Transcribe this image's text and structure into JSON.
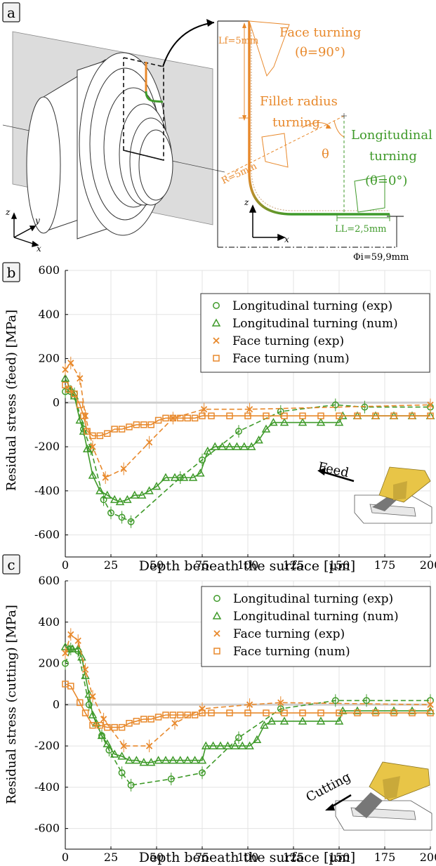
{
  "panel_a": {
    "label": "a",
    "face_turning": "Face turning",
    "face_angle": "(θ=90°)",
    "lf": "Lf=5mm",
    "fillet": [
      "Fillet radius",
      "turning"
    ],
    "theta": "θ",
    "longitudinal": [
      "Longitudinal",
      "turning"
    ],
    "long_angle": "(θ=0°)",
    "radius": "R=5mm",
    "ll": "LL=2,5mm",
    "phi": "Φi=59,9mm",
    "axis_z": "z",
    "axis_x": "x",
    "axis_y": "y",
    "colors": {
      "face": "#e8892c",
      "long": "#3f9a2a",
      "gray": "#d9d9d9"
    }
  },
  "chart_data": [
    {
      "label": "b",
      "type": "line",
      "xlabel": "Depth beneath the surface [µm]",
      "ylabel": "Residual stress (feed) [MPa]",
      "xlim": [
        0,
        200
      ],
      "ylim": [
        -700,
        600
      ],
      "xticks": [
        0,
        25,
        50,
        75,
        100,
        125,
        150,
        175,
        200
      ],
      "yticks": [
        600,
        400,
        200,
        0,
        -200,
        -400,
        -600
      ],
      "grid": true,
      "legend_position": "top-right",
      "inset_label": "Feed",
      "series": [
        {
          "name": "Longitudinal turning (exp)",
          "color": "#3f9a2a",
          "marker": "circle",
          "style": "dashed",
          "points": [
            [
              0,
              50
            ],
            [
              3,
              50
            ],
            [
              5,
              40
            ],
            [
              10,
              -120
            ],
            [
              14,
              -210
            ],
            [
              21,
              -440
            ],
            [
              25,
              -500
            ],
            [
              31,
              -520
            ],
            [
              36,
              -540
            ],
            [
              63,
              -340
            ],
            [
              75,
              -260
            ],
            [
              95,
              -130
            ],
            [
              118,
              -40
            ],
            [
              148,
              -10
            ],
            [
              164,
              -20
            ],
            [
              200,
              -20
            ]
          ]
        },
        {
          "name": "Longitudinal turning (num)",
          "color": "#3f9a2a",
          "marker": "triangle",
          "style": "solid",
          "points": [
            [
              0,
              110
            ],
            [
              3,
              60
            ],
            [
              5,
              30
            ],
            [
              8,
              -80
            ],
            [
              10,
              -130
            ],
            [
              12,
              -210
            ],
            [
              15,
              -330
            ],
            [
              19,
              -400
            ],
            [
              23,
              -420
            ],
            [
              27,
              -440
            ],
            [
              30,
              -450
            ],
            [
              34,
              -440
            ],
            [
              38,
              -420
            ],
            [
              42,
              -420
            ],
            [
              46,
              -400
            ],
            [
              50,
              -380
            ],
            [
              55,
              -340
            ],
            [
              60,
              -340
            ],
            [
              65,
              -340
            ],
            [
              70,
              -340
            ],
            [
              74,
              -320
            ],
            [
              78,
              -220
            ],
            [
              82,
              -200
            ],
            [
              86,
              -200
            ],
            [
              90,
              -200
            ],
            [
              94,
              -200
            ],
            [
              98,
              -200
            ],
            [
              102,
              -200
            ],
            [
              106,
              -170
            ],
            [
              110,
              -120
            ],
            [
              114,
              -90
            ],
            [
              120,
              -90
            ],
            [
              130,
              -90
            ],
            [
              140,
              -90
            ],
            [
              150,
              -90
            ],
            [
              152,
              -60
            ],
            [
              160,
              -60
            ],
            [
              170,
              -60
            ],
            [
              180,
              -60
            ],
            [
              190,
              -60
            ],
            [
              200,
              -60
            ]
          ]
        },
        {
          "name": "Face turning (exp)",
          "color": "#e8892c",
          "marker": "x",
          "style": "dashed",
          "points": [
            [
              0,
              150
            ],
            [
              3,
              180
            ],
            [
              8,
              110
            ],
            [
              11,
              -60
            ],
            [
              15,
              -200
            ],
            [
              22,
              -340
            ],
            [
              32,
              -300
            ],
            [
              46,
              -180
            ],
            [
              59,
              -70
            ],
            [
              76,
              -30
            ],
            [
              101,
              -30
            ],
            [
              200,
              -10
            ]
          ]
        },
        {
          "name": "Face turning (num)",
          "color": "#e8892c",
          "marker": "square",
          "style": "solid",
          "points": [
            [
              0,
              80
            ],
            [
              2,
              60
            ],
            [
              5,
              40
            ],
            [
              8,
              -10
            ],
            [
              10,
              -60
            ],
            [
              12,
              -130
            ],
            [
              15,
              -150
            ],
            [
              19,
              -150
            ],
            [
              23,
              -140
            ],
            [
              27,
              -120
            ],
            [
              31,
              -120
            ],
            [
              35,
              -110
            ],
            [
              39,
              -100
            ],
            [
              43,
              -100
            ],
            [
              47,
              -100
            ],
            [
              51,
              -80
            ],
            [
              55,
              -70
            ],
            [
              59,
              -70
            ],
            [
              63,
              -70
            ],
            [
              67,
              -70
            ],
            [
              71,
              -70
            ],
            [
              75,
              -60
            ],
            [
              80,
              -60
            ],
            [
              90,
              -60
            ],
            [
              100,
              -60
            ],
            [
              110,
              -60
            ],
            [
              120,
              -60
            ],
            [
              130,
              -60
            ],
            [
              140,
              -60
            ],
            [
              150,
              -60
            ],
            [
              160,
              -60
            ],
            [
              170,
              -60
            ],
            [
              180,
              -60
            ],
            [
              190,
              -60
            ],
            [
              200,
              -60
            ]
          ]
        }
      ]
    },
    {
      "label": "c",
      "type": "line",
      "xlabel": "Depth beneath the surface [µm]",
      "ylabel": "Residual stress (cutting) [MPa]",
      "xlim": [
        0,
        200
      ],
      "ylim": [
        -700,
        600
      ],
      "xticks": [
        0,
        25,
        50,
        75,
        100,
        125,
        150,
        175,
        200
      ],
      "yticks": [
        600,
        400,
        200,
        0,
        -200,
        -400,
        -600
      ],
      "grid": true,
      "legend_position": "top-right",
      "inset_label": "Cutting",
      "series": [
        {
          "name": "Longitudinal turning (exp)",
          "color": "#3f9a2a",
          "marker": "circle",
          "style": "dashed",
          "points": [
            [
              0,
              200
            ],
            [
              3,
              270
            ],
            [
              7,
              260
            ],
            [
              13,
              0
            ],
            [
              20,
              -150
            ],
            [
              24,
              -220
            ],
            [
              31,
              -330
            ],
            [
              36,
              -390
            ],
            [
              58,
              -360
            ],
            [
              75,
              -330
            ],
            [
              95,
              -160
            ],
            [
              118,
              -20
            ],
            [
              148,
              20
            ],
            [
              165,
              20
            ],
            [
              200,
              20
            ]
          ]
        },
        {
          "name": "Longitudinal turning (num)",
          "color": "#3f9a2a",
          "marker": "triangle",
          "style": "solid",
          "points": [
            [
              0,
              280
            ],
            [
              2,
              270
            ],
            [
              4,
              270
            ],
            [
              7,
              270
            ],
            [
              9,
              230
            ],
            [
              11,
              140
            ],
            [
              13,
              50
            ],
            [
              15,
              -50
            ],
            [
              17,
              -90
            ],
            [
              20,
              -150
            ],
            [
              23,
              -190
            ],
            [
              27,
              -240
            ],
            [
              31,
              -250
            ],
            [
              35,
              -270
            ],
            [
              39,
              -270
            ],
            [
              43,
              -280
            ],
            [
              47,
              -280
            ],
            [
              51,
              -270
            ],
            [
              55,
              -270
            ],
            [
              59,
              -270
            ],
            [
              63,
              -270
            ],
            [
              67,
              -270
            ],
            [
              71,
              -270
            ],
            [
              75,
              -270
            ],
            [
              77,
              -200
            ],
            [
              81,
              -200
            ],
            [
              85,
              -200
            ],
            [
              89,
              -200
            ],
            [
              93,
              -200
            ],
            [
              97,
              -200
            ],
            [
              101,
              -200
            ],
            [
              105,
              -170
            ],
            [
              109,
              -100
            ],
            [
              113,
              -80
            ],
            [
              120,
              -80
            ],
            [
              130,
              -80
            ],
            [
              140,
              -80
            ],
            [
              150,
              -80
            ],
            [
              152,
              -30
            ],
            [
              160,
              -30
            ],
            [
              170,
              -30
            ],
            [
              180,
              -30
            ],
            [
              190,
              -30
            ],
            [
              200,
              -30
            ]
          ]
        },
        {
          "name": "Face turning (exp)",
          "color": "#e8892c",
          "marker": "x",
          "style": "dashed",
          "points": [
            [
              0,
              250
            ],
            [
              3,
              340
            ],
            [
              7,
              310
            ],
            [
              11,
              170
            ],
            [
              15,
              40
            ],
            [
              21,
              -70
            ],
            [
              32,
              -200
            ],
            [
              46,
              -200
            ],
            [
              60,
              -90
            ],
            [
              75,
              -20
            ],
            [
              101,
              0
            ],
            [
              118,
              10
            ],
            [
              200,
              0
            ]
          ]
        },
        {
          "name": "Face turning (num)",
          "color": "#e8892c",
          "marker": "square",
          "style": "solid",
          "points": [
            [
              0,
              100
            ],
            [
              3,
              90
            ],
            [
              8,
              10
            ],
            [
              11,
              -40
            ],
            [
              15,
              -100
            ],
            [
              19,
              -100
            ],
            [
              23,
              -110
            ],
            [
              27,
              -110
            ],
            [
              31,
              -110
            ],
            [
              35,
              -90
            ],
            [
              39,
              -80
            ],
            [
              43,
              -70
            ],
            [
              47,
              -70
            ],
            [
              51,
              -60
            ],
            [
              55,
              -50
            ],
            [
              59,
              -50
            ],
            [
              63,
              -50
            ],
            [
              67,
              -50
            ],
            [
              71,
              -50
            ],
            [
              75,
              -40
            ],
            [
              80,
              -40
            ],
            [
              90,
              -40
            ],
            [
              100,
              -40
            ],
            [
              110,
              -40
            ],
            [
              120,
              -40
            ],
            [
              130,
              -40
            ],
            [
              140,
              -40
            ],
            [
              150,
              -40
            ],
            [
              160,
              -40
            ],
            [
              170,
              -40
            ],
            [
              180,
              -40
            ],
            [
              190,
              -40
            ],
            [
              200,
              -40
            ]
          ]
        }
      ]
    }
  ]
}
